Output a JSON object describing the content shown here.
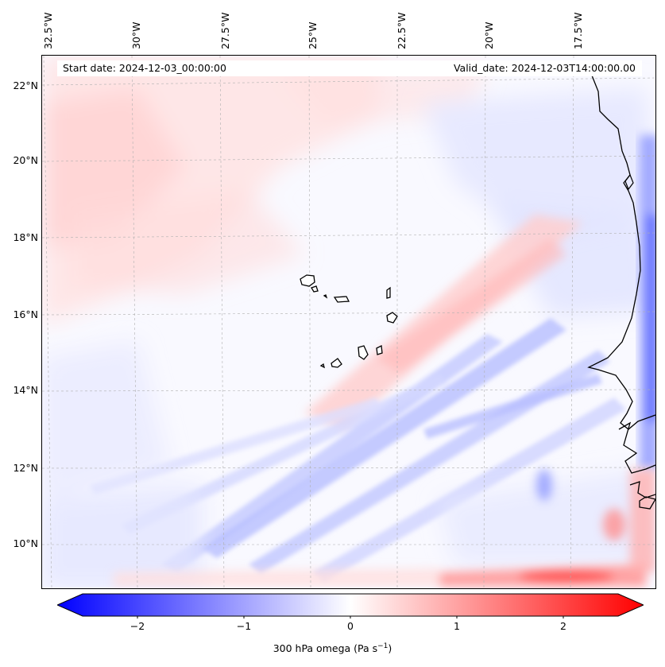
{
  "map": {
    "lon_labels": [
      "32.5°W",
      "30°W",
      "27.5°W",
      "25°W",
      "22.5°W",
      "20°W",
      "17.5°W"
    ],
    "lat_labels": [
      "22°N",
      "20°N",
      "18°N",
      "16°N",
      "14°N",
      "12°N",
      "10°N"
    ],
    "start_date": "Start date: 2024-12-03_00:00:00",
    "valid_date": "Valid_date: 2024-12-03T14:00:00.00",
    "variable_label": "300 hPa omega (Pa s",
    "variable_unit_sup": "−1",
    "variable_label_end": ")",
    "colors": {
      "negative": "#0000ff",
      "neutral": "#ffffff",
      "positive": "#ff0000",
      "coastline": "#000000",
      "gridline": "#b0b0b0"
    }
  },
  "colorbar": {
    "ticks": [
      "−2",
      "−1",
      "0",
      "1",
      "2"
    ],
    "range": [
      -2.5,
      2.5
    ]
  }
}
